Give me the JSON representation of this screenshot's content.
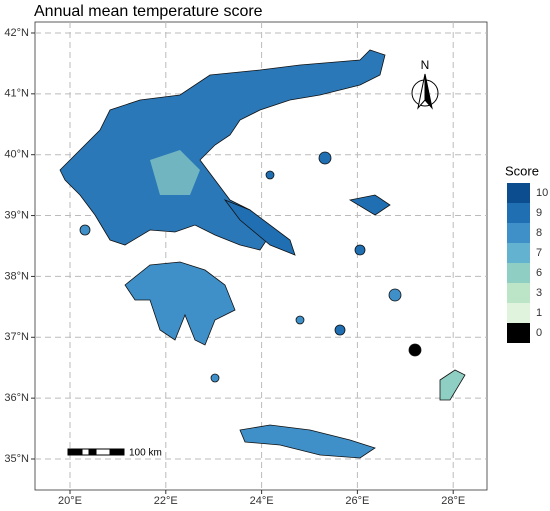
{
  "map": {
    "title": "Annual mean temperature score",
    "xticks": [
      {
        "value": 20,
        "label": "20°E"
      },
      {
        "value": 22,
        "label": "22°E"
      },
      {
        "value": 24,
        "label": "24°E"
      },
      {
        "value": 26,
        "label": "26°E"
      },
      {
        "value": 28,
        "label": "28°E"
      }
    ],
    "yticks": [
      {
        "value": 35,
        "label": "35°N"
      },
      {
        "value": 36,
        "label": "36°N"
      },
      {
        "value": 37,
        "label": "37°N"
      },
      {
        "value": 38,
        "label": "38°N"
      },
      {
        "value": 39,
        "label": "39°N"
      },
      {
        "value": 40,
        "label": "40°N"
      },
      {
        "value": 41,
        "label": "41°N"
      },
      {
        "value": 42,
        "label": "42°N"
      }
    ],
    "legend": {
      "title": "Score",
      "entries": [
        {
          "value": 10,
          "color": "#0b4d8f"
        },
        {
          "value": 9,
          "color": "#1f6fb2"
        },
        {
          "value": 8,
          "color": "#3f8fc8"
        },
        {
          "value": 7,
          "color": "#63b2cf"
        },
        {
          "value": 6,
          "color": "#8fcfc3"
        },
        {
          "value": 3,
          "color": "#bce4c6"
        },
        {
          "value": 1,
          "color": "#e0f3dc"
        },
        {
          "value": 0,
          "color": "#000000"
        }
      ]
    },
    "scale_bar": "100 km",
    "north": "N"
  }
}
